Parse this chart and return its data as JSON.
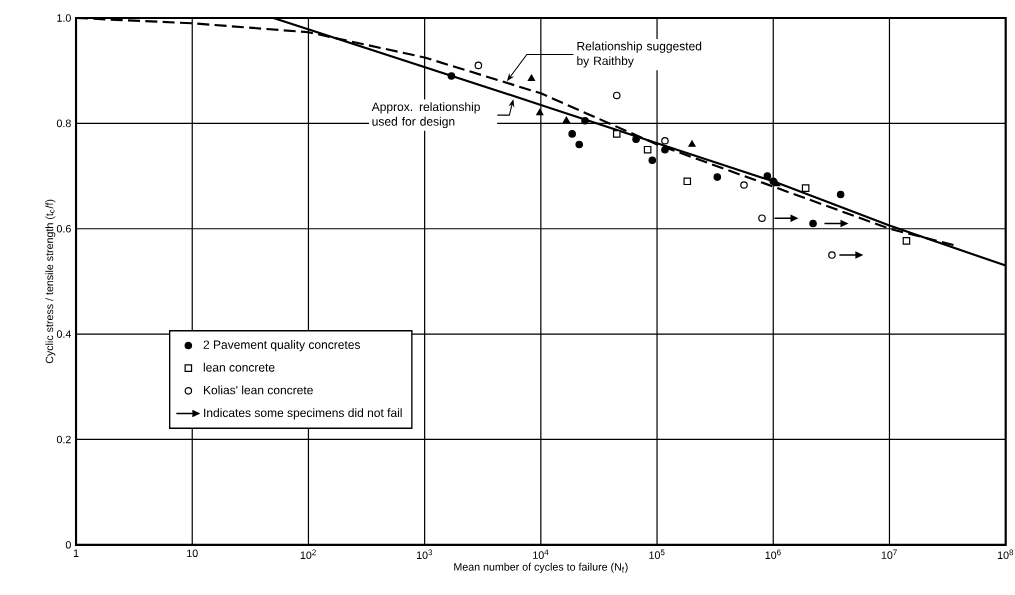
{
  "chart_data": {
    "type": "scatter",
    "xlabel": "Mean number of cycles to failure (N$_{f}$)",
    "ylabel": "Cyclic stress / tensile strength (t$_{c}$/f)",
    "log": "x",
    "grid": true,
    "legend": "left",
    "xlim": [
      1,
      100000000
    ],
    "ylim": [
      0,
      1
    ],
    "xticks": [
      {
        "value": 1,
        "label": "1"
      },
      {
        "value": 10,
        "label": "10"
      },
      {
        "value": 100,
        "label": "10$^{2}$"
      },
      {
        "value": 1000,
        "label": "10$^{3}$"
      },
      {
        "value": 10000,
        "label": "10$^{4}$"
      },
      {
        "value": 100000,
        "label": "10$^{5}$"
      },
      {
        "value": 1000000,
        "label": "10$^{6}$"
      },
      {
        "value": 10000000,
        "label": "10$^{7}$"
      },
      {
        "value": 100000000,
        "label": "10$^{8}$"
      }
    ],
    "yticks": [
      0,
      0.2,
      0.4,
      0.6,
      0.8,
      {
        "value": 1,
        "label": "1.0"
      }
    ],
    "series": [
      {
        "name": "2 Pavement quality concretes",
        "marker": "circle",
        "color": "#000000",
        "x": [
          1700,
          24000,
          18600,
          21400,
          66000,
          91000,
          117000,
          330000,
          890000,
          2200000,
          3800000,
          1000000
        ],
        "values": [
          0.89,
          0.805,
          0.78,
          0.76,
          0.77,
          0.73,
          0.75,
          0.698,
          0.7,
          0.61,
          0.665,
          0.69
        ]
      },
      {
        "marker": "triangle",
        "color": "#000000",
        "x": [
          8300,
          9800,
          16600,
          200000,
          1070000
        ],
        "values": [
          0.885,
          0.82,
          0.805,
          0.76,
          0.685
        ]
      },
      {
        "name": "lean concrete",
        "marker": "square",
        "color": "#000000",
        "x": [
          45000,
          83000,
          182000,
          1900000,
          14000000
        ],
        "values": [
          0.78,
          0.75,
          0.69,
          0.677,
          0.577
        ]
      },
      {
        "name": "Kolias' lean concrete",
        "marker": "circle",
        "color": "#000000",
        "x": [
          2900,
          45000,
          117000,
          560000,
          800000,
          3200000
        ],
        "values": [
          0.91,
          0.853,
          0.767,
          0.683,
          0.62,
          0.55
        ]
      },
      {
        "name": "Indicates some specimens did not fail",
        "marker": "triangle",
        "color": "#000000",
        "x": [
          1300000,
          3500000,
          4700000
        ],
        "values": [
          0.62,
          0.61,
          0.55
        ]
      },
      {
        "type": "line",
        "marker": "none",
        "line_style": "solid",
        "color": "#000000",
        "x": [
          50,
          10000,
          1000000,
          10000000,
          100000000
        ],
        "values": [
          1.0,
          0.835,
          0.69,
          0.606,
          0.53
        ]
      },
      {
        "type": "line",
        "marker": "none",
        "line_style": "dashed",
        "color": "#000000",
        "x": [
          1,
          10,
          100,
          1000,
          10000,
          100000,
          1000000,
          10000000,
          37000000
        ],
        "values": [
          1.0,
          0.99,
          0.973,
          0.925,
          0.857,
          0.76,
          0.68,
          0.6,
          0.568
        ]
      }
    ],
    "annotations": [
      {
        "text": "Relationship suggested by Raithby",
        "x": 5100,
        "y": 0.88
      },
      {
        "text": "Approx. relationship used for design",
        "x": 5800,
        "y": 0.846
      }
    ]
  }
}
